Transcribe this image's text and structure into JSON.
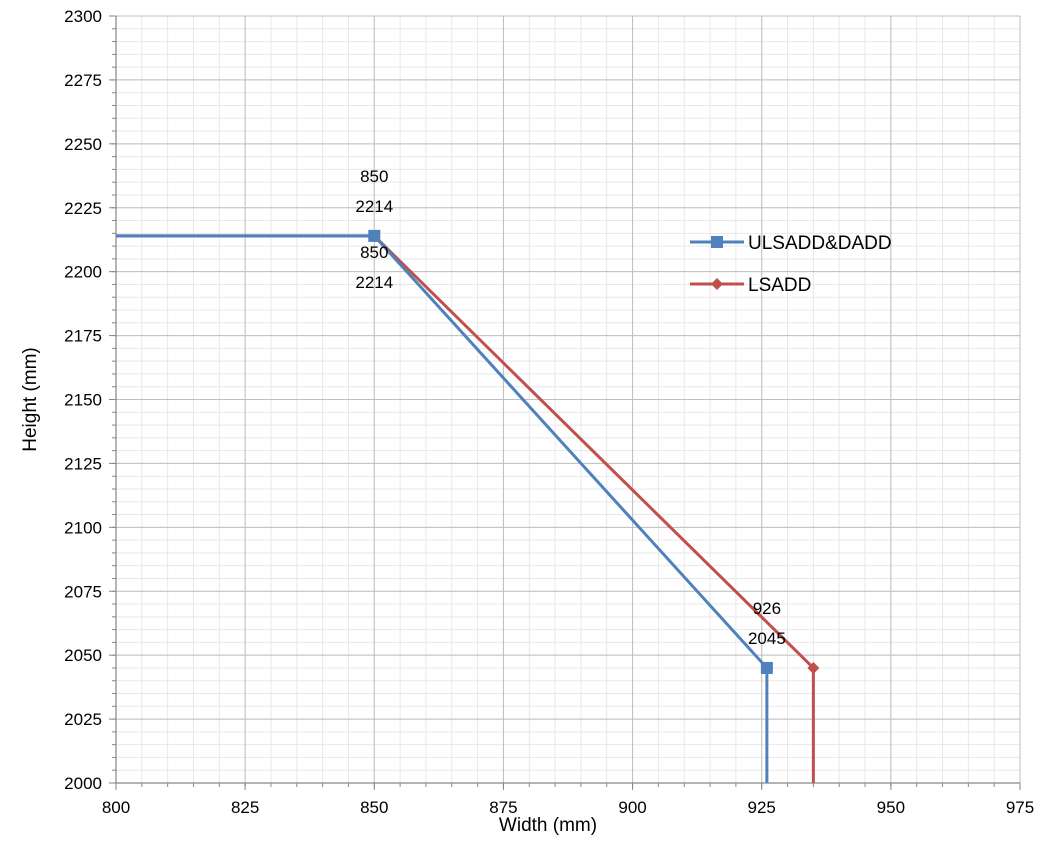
{
  "chart_data": {
    "type": "line",
    "title": "",
    "xlabel": "Width (mm)",
    "ylabel": "Height (mm)",
    "xlim": [
      800,
      975
    ],
    "ylim": [
      2000,
      2300
    ],
    "x_ticks": [
      800,
      825,
      850,
      875,
      900,
      925,
      950,
      975
    ],
    "y_ticks": [
      2000,
      2025,
      2050,
      2075,
      2100,
      2125,
      2150,
      2175,
      2200,
      2225,
      2250,
      2275,
      2300
    ],
    "x_minor_step": 5,
    "y_minor_step": 5,
    "grid": true,
    "legend_position": "right",
    "series": [
      {
        "name": "ULSADD&DADD",
        "color": "#4f81bd",
        "marker": "square",
        "points": [
          [
            800,
            2214
          ],
          [
            850,
            2214
          ],
          [
            926,
            2045
          ],
          [
            926,
            2000
          ]
        ],
        "marker_indices": [
          1,
          2
        ]
      },
      {
        "name": "LSADD",
        "color": "#c0504d",
        "marker": "diamond",
        "points": [
          [
            800,
            2214
          ],
          [
            850,
            2214
          ],
          [
            935,
            2045
          ],
          [
            935,
            2000
          ]
        ],
        "marker_indices": [
          1,
          2
        ]
      }
    ],
    "annotations": [
      {
        "line1": "850",
        "line2": "2214",
        "x": 850,
        "y": 2214,
        "placement": "above"
      },
      {
        "line1": "850",
        "line2": "2214",
        "x": 850,
        "y": 2214,
        "placement": "below"
      },
      {
        "line1": "926",
        "line2": "2045",
        "x": 926,
        "y": 2045,
        "placement": "above"
      }
    ]
  }
}
